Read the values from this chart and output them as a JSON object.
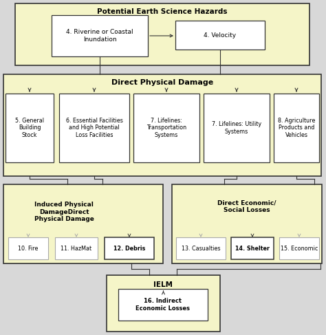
{
  "light_yellow": "#f5f5c8",
  "white": "#ffffff",
  "fig_bg": "#d8d8d8",
  "box_edge": "#555555",
  "dark_edge": "#333333",
  "gray_edge": "#aaaaaa",
  "title": "Potential Earth Science Hazards",
  "dpd_label": "Direct Physical Damage",
  "ipd_label": "Induced Physical\nDamageDirect\nPhysical Damage",
  "desl_label": "Direct Economic/\nSocial Losses",
  "ielm_label": "IELM",
  "box1_label": "4. Riverine or Coastal\nInundation",
  "box2_label": "4. Velocity",
  "box3_label": "5. General\nBuilding\nStock",
  "box4_label": "6. Essential Facilities\nand High Potential\nLoss Facilities",
  "box5_label": "7. Lifelines:\nTransportation\nSystems",
  "box6_label": "7. Lifelines: Utility\nSystems",
  "box7_label": "8. Agriculture\nProducts and\nVehicles",
  "box8_label": "10. Fire",
  "box9_label": "11. HazMat",
  "box10_label": "12. Debris",
  "box11_label": "13. Casualties",
  "box12_label": "14. Shelter",
  "box13_label": "15. Economic",
  "box14_label": "16. Indirect\nEconomic Losses"
}
